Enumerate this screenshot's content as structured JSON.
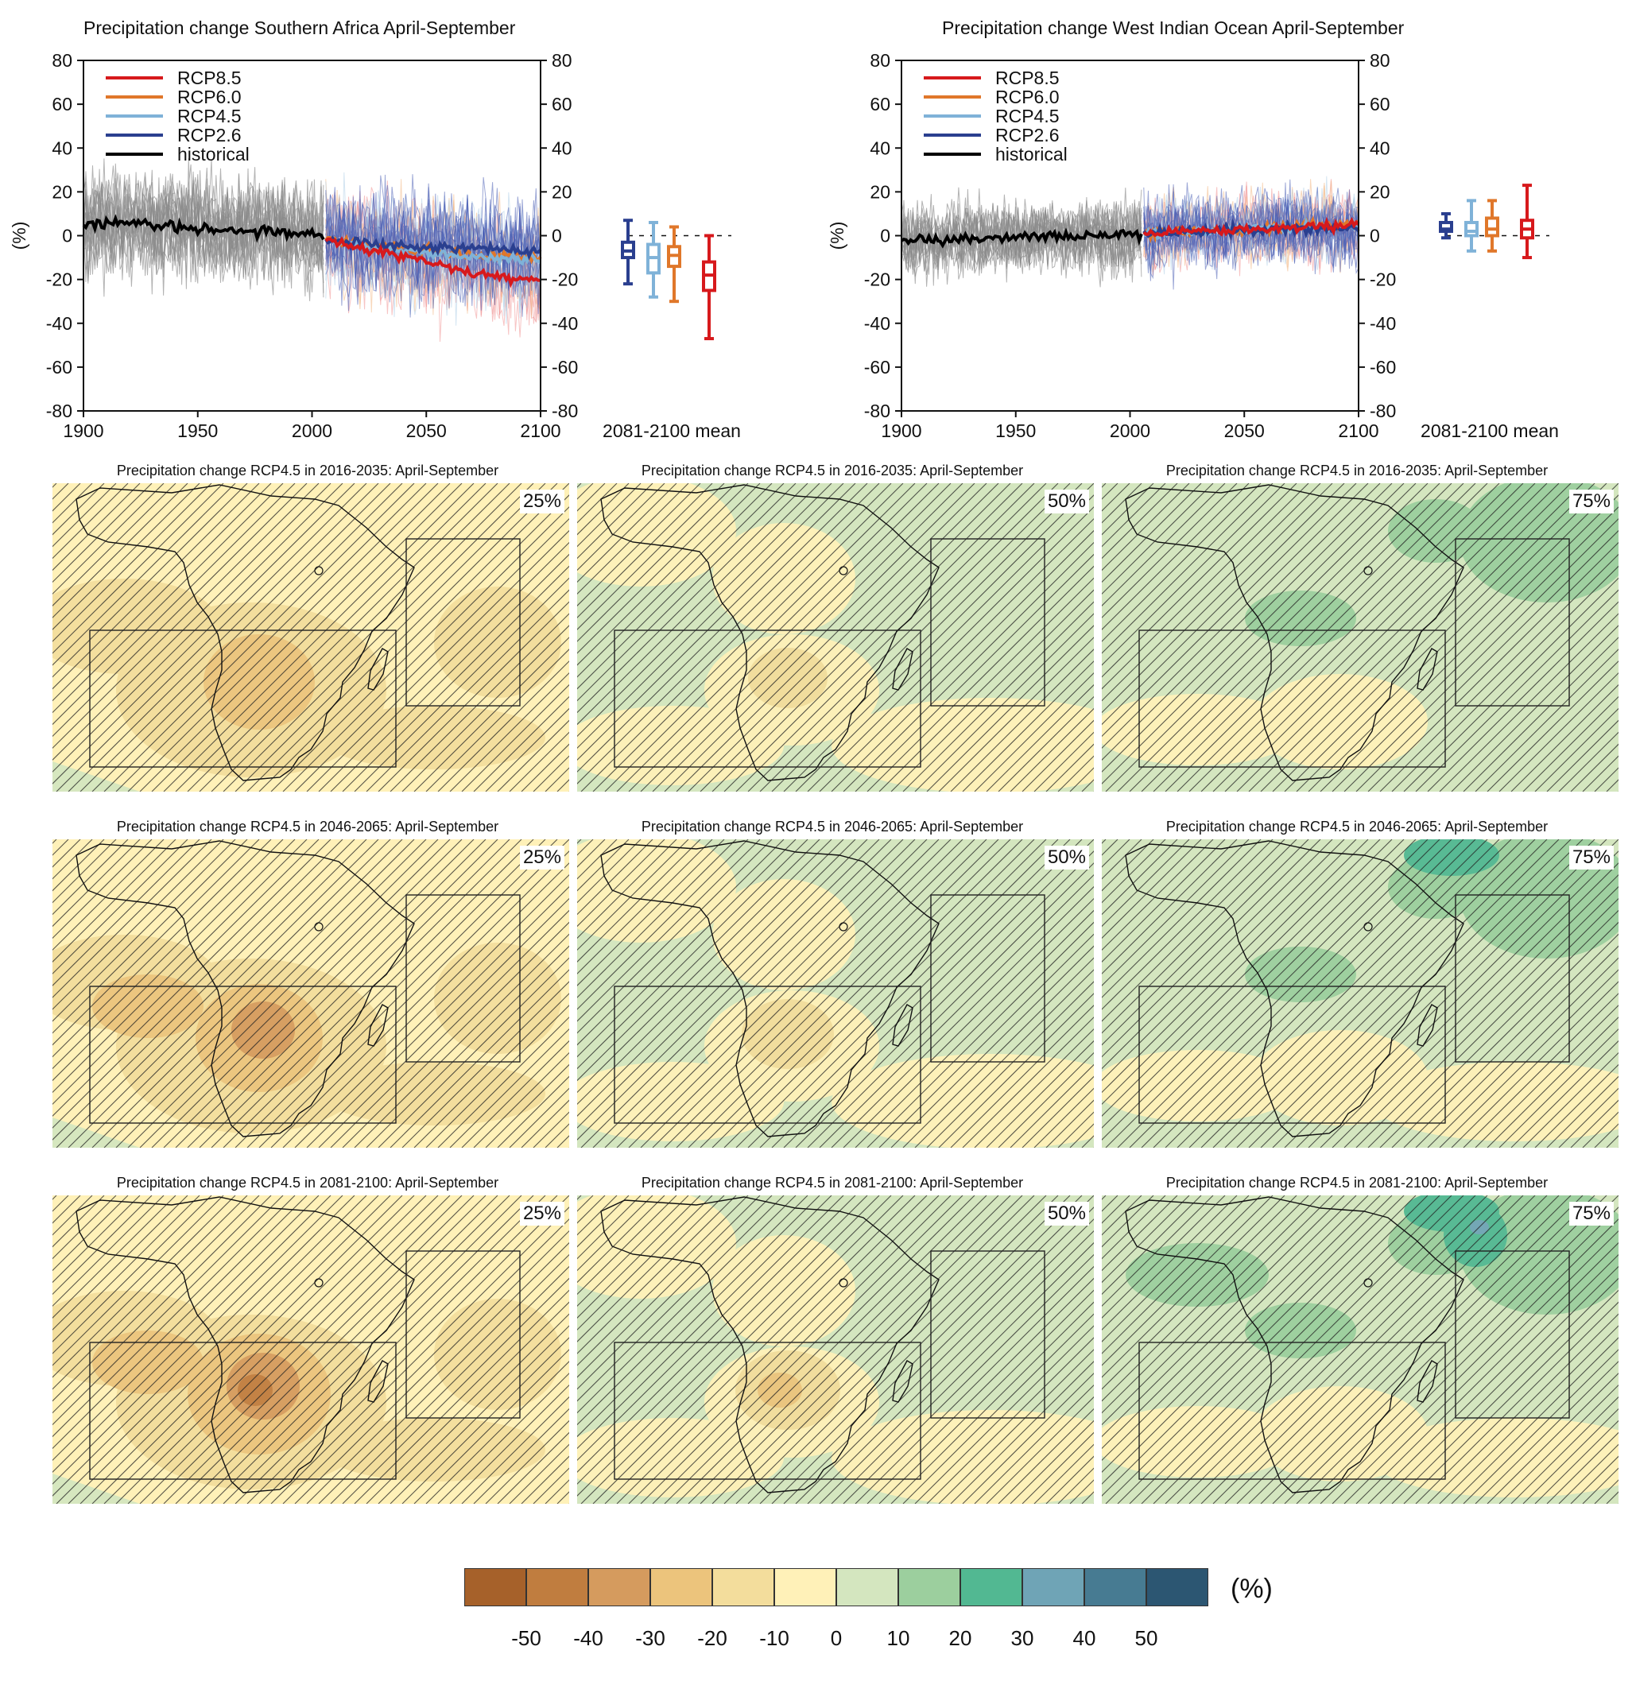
{
  "time_series": [
    {
      "title": "Precipitation change Southern Africa April-September",
      "ylabel": "(%)",
      "boxplot_label": "2081-2100 mean",
      "legend": [
        "RCP8.5",
        "RCP6.0",
        "RCP4.5",
        "RCP2.6",
        "historical"
      ]
    },
    {
      "title": "Precipitation change West Indian Ocean April-September",
      "ylabel": "(%)",
      "boxplot_label": "2081-2100 mean",
      "legend": [
        "RCP8.5",
        "RCP6.0",
        "RCP4.5",
        "RCP2.6",
        "historical"
      ]
    }
  ],
  "chart_data": [
    {
      "type": "line",
      "title": "Precipitation change Southern Africa April-September",
      "ylabel": "(%)",
      "xlim": [
        1900,
        2100
      ],
      "ylim": [
        -80,
        80
      ],
      "x_ticks": [
        1900,
        1950,
        2000,
        2050,
        2100
      ],
      "y_ticks": [
        -80,
        -60,
        -40,
        -20,
        0,
        20,
        40,
        60,
        80
      ],
      "series": [
        {
          "name": "historical",
          "color": "#000000",
          "x": [
            1900,
            1920,
            1940,
            1960,
            1980,
            2005
          ],
          "y": [
            5,
            6,
            4,
            3,
            2,
            0
          ]
        },
        {
          "name": "RCP2.6",
          "color": "#2a3f8f",
          "x": [
            2006,
            2025,
            2050,
            2075,
            2100
          ],
          "y": [
            -2,
            -4,
            -5,
            -6,
            -7
          ]
        },
        {
          "name": "RCP4.5",
          "color": "#7fb2d8",
          "x": [
            2006,
            2025,
            2050,
            2075,
            2100
          ],
          "y": [
            -2,
            -5,
            -8,
            -10,
            -11
          ]
        },
        {
          "name": "RCP6.0",
          "color": "#e0772a",
          "x": [
            2006,
            2025,
            2050,
            2075,
            2100
          ],
          "y": [
            -2,
            -4,
            -7,
            -9,
            -10
          ]
        },
        {
          "name": "RCP8.5",
          "color": "#d7191c",
          "x": [
            2006,
            2025,
            2050,
            2075,
            2100
          ],
          "y": [
            -2,
            -6,
            -12,
            -18,
            -22
          ]
        }
      ],
      "boxplots_2081_2100_mean": [
        {
          "name": "RCP2.6",
          "color": "#2a3f8f",
          "min": -22,
          "q1": -10,
          "median": -7,
          "q3": -3,
          "max": 7
        },
        {
          "name": "RCP4.5",
          "color": "#7fb2d8",
          "min": -28,
          "q1": -17,
          "median": -10,
          "q3": -4,
          "max": 6
        },
        {
          "name": "RCP6.0",
          "color": "#e0772a",
          "min": -30,
          "q1": -14,
          "median": -9,
          "q3": -5,
          "max": 4
        },
        {
          "name": "RCP8.5",
          "color": "#d7191c",
          "min": -47,
          "q1": -25,
          "median": -18,
          "q3": -12,
          "max": 0
        }
      ]
    },
    {
      "type": "line",
      "title": "Precipitation change West Indian Ocean April-September",
      "ylabel": "(%)",
      "xlim": [
        1900,
        2100
      ],
      "ylim": [
        -80,
        80
      ],
      "x_ticks": [
        1900,
        1950,
        2000,
        2050,
        2100
      ],
      "y_ticks": [
        -80,
        -60,
        -40,
        -20,
        0,
        20,
        40,
        60,
        80
      ],
      "series": [
        {
          "name": "historical",
          "color": "#000000",
          "x": [
            1900,
            1920,
            1940,
            1960,
            1980,
            2005
          ],
          "y": [
            -2,
            -2,
            -1,
            0,
            0,
            0
          ]
        },
        {
          "name": "RCP2.6",
          "color": "#2a3f8f",
          "x": [
            2006,
            2025,
            2050,
            2075,
            2100
          ],
          "y": [
            1,
            2,
            3,
            3,
            3
          ]
        },
        {
          "name": "RCP4.5",
          "color": "#7fb2d8",
          "x": [
            2006,
            2025,
            2050,
            2075,
            2100
          ],
          "y": [
            1,
            2,
            3,
            4,
            4
          ]
        },
        {
          "name": "RCP6.0",
          "color": "#e0772a",
          "x": [
            2006,
            2025,
            2050,
            2075,
            2100
          ],
          "y": [
            1,
            2,
            3,
            4,
            5
          ]
        },
        {
          "name": "RCP8.5",
          "color": "#d7191c",
          "x": [
            2006,
            2025,
            2050,
            2075,
            2100
          ],
          "y": [
            1,
            2,
            3,
            4,
            5
          ]
        }
      ],
      "boxplots_2081_2100_mean": [
        {
          "name": "RCP2.6",
          "color": "#2a3f8f",
          "min": -1,
          "q1": 2,
          "median": 3,
          "q3": 6,
          "max": 10
        },
        {
          "name": "RCP4.5",
          "color": "#7fb2d8",
          "min": -7,
          "q1": 0,
          "median": 2,
          "q3": 6,
          "max": 16
        },
        {
          "name": "RCP6.0",
          "color": "#e0772a",
          "min": -7,
          "q1": 0,
          "median": 3,
          "q3": 8,
          "max": 16
        },
        {
          "name": "RCP8.5",
          "color": "#d7191c",
          "min": -10,
          "q1": -1,
          "median": 3,
          "q3": 7,
          "max": 23
        }
      ]
    },
    {
      "type": "heatmap",
      "colorbar_unit": "(%)",
      "colorbar_ticks": [
        -50,
        -40,
        -30,
        -20,
        -10,
        0,
        10,
        20,
        30,
        40,
        50
      ],
      "colorbar_colors": [
        "#a6612a",
        "#c07d3f",
        "#d59b5e",
        "#ecc47c",
        "#f3dd9c",
        "#fff1b8",
        "#d4e6bf",
        "#9ccf9e",
        "#52b892",
        "#6fa4b6",
        "#477b92",
        "#2c5672"
      ],
      "panels": [
        {
          "title": "Precipitation change RCP4.5 in 2016-2035: April-September",
          "percentile": "25%"
        },
        {
          "title": "Precipitation change RCP4.5 in 2016-2035: April-September",
          "percentile": "50%"
        },
        {
          "title": "Precipitation change RCP4.5 in 2016-2035: April-September",
          "percentile": "75%"
        },
        {
          "title": "Precipitation change RCP4.5 in 2046-2065: April-September",
          "percentile": "25%"
        },
        {
          "title": "Precipitation change RCP4.5 in 2046-2065: April-September",
          "percentile": "50%"
        },
        {
          "title": "Precipitation change RCP4.5 in 2046-2065: April-September",
          "percentile": "75%"
        },
        {
          "title": "Precipitation change RCP4.5 in 2081-2100: April-September",
          "percentile": "25%"
        },
        {
          "title": "Precipitation change RCP4.5 in 2081-2100: April-September",
          "percentile": "50%"
        },
        {
          "title": "Precipitation change RCP4.5 in 2081-2100: April-September",
          "percentile": "75%"
        }
      ]
    }
  ]
}
